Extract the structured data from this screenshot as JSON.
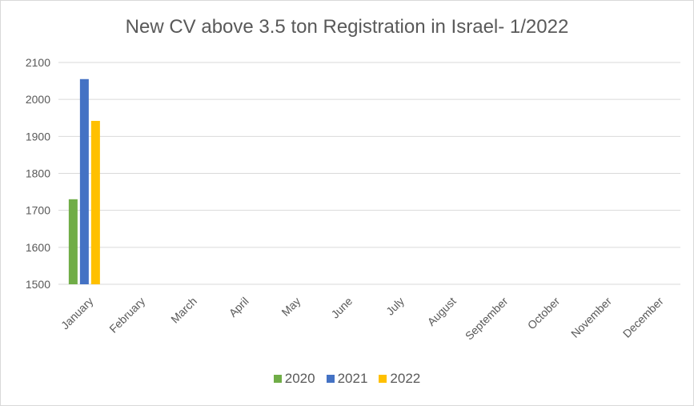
{
  "chart_data": {
    "type": "bar",
    "title": "New CV above 3.5 ton Registration in Israel- 1/2022",
    "xlabel": "",
    "ylabel": "",
    "ylim": [
      1500,
      2100
    ],
    "yticks": [
      1500,
      1600,
      1700,
      1800,
      1900,
      2000,
      2100
    ],
    "grid": true,
    "legend_position": "bottom",
    "categories": [
      "January",
      "February",
      "March",
      "April",
      "May",
      "June",
      "July",
      "August",
      "September",
      "October",
      "November",
      "December"
    ],
    "series": [
      {
        "name": "2020",
        "color": "#70ad47",
        "values": [
          1730,
          null,
          null,
          null,
          null,
          null,
          null,
          null,
          null,
          null,
          null,
          null
        ]
      },
      {
        "name": "2021",
        "color": "#4472c4",
        "values": [
          2055,
          null,
          null,
          null,
          null,
          null,
          null,
          null,
          null,
          null,
          null,
          null
        ]
      },
      {
        "name": "2022",
        "color": "#ffc000",
        "values": [
          1942,
          null,
          null,
          null,
          null,
          null,
          null,
          null,
          null,
          null,
          null,
          null
        ]
      }
    ]
  }
}
